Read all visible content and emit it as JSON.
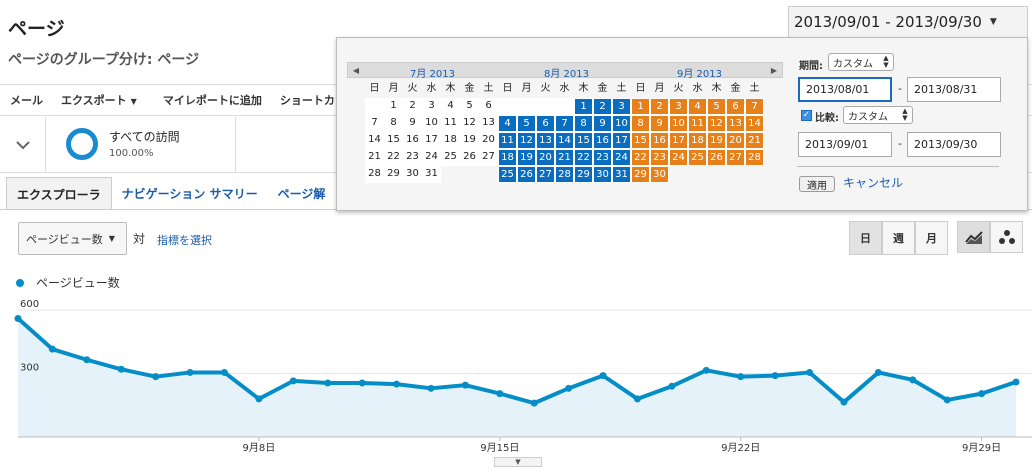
{
  "header": {
    "title": "ページ",
    "subtitle": "ページのグループ分け: ページ",
    "date_range": "2013/09/01 - 2013/09/30"
  },
  "toolbar": {
    "items": [
      "メール",
      "エクスポート",
      "マイレポートに追加",
      "ショートカ"
    ]
  },
  "segment": {
    "name": "すべての訪問",
    "percent": "100.00%"
  },
  "tabs": [
    "エクスプローラ",
    "ナビゲーション サマリー",
    "ページ解"
  ],
  "controls": {
    "metric": "ページビュー数",
    "vs": "対",
    "pick_metric": "指標を選択",
    "periods": [
      "日",
      "週",
      "月"
    ]
  },
  "legend": {
    "label": "ページビュー数",
    "color": "#058dc7"
  },
  "datepicker": {
    "months": [
      "7月 2013",
      "8月 2013",
      "9月 2013"
    ],
    "weekdays": [
      "日",
      "月",
      "火",
      "水",
      "木",
      "金",
      "土"
    ],
    "period_label": "期間:",
    "period_value": "カスタム",
    "range_start": "2013/08/01",
    "range_end": "2013/08/31",
    "compare_label": "比較:",
    "compare_value": "カスタム",
    "compare_start": "2013/09/01",
    "compare_end": "2013/09/30",
    "dash": "-",
    "apply": "適用",
    "cancel": "キャンセル",
    "colors": {
      "compare": "#0a6dbf",
      "current": "#e8801a"
    }
  },
  "chart_data": {
    "type": "area",
    "x": [
      "9/1",
      "9/2",
      "9/3",
      "9/4",
      "9/5",
      "9/6",
      "9/7",
      "9/8",
      "9/9",
      "9/10",
      "9/11",
      "9/12",
      "9/13",
      "9/14",
      "9/15",
      "9/16",
      "9/17",
      "9/18",
      "9/19",
      "9/20",
      "9/21",
      "9/22",
      "9/23",
      "9/24",
      "9/25",
      "9/26",
      "9/27",
      "9/28",
      "9/29",
      "9/30"
    ],
    "values": [
      560,
      415,
      365,
      320,
      285,
      305,
      305,
      180,
      265,
      255,
      255,
      250,
      230,
      245,
      205,
      160,
      230,
      290,
      180,
      240,
      315,
      285,
      290,
      305,
      165,
      305,
      270,
      175,
      205,
      260
    ],
    "xticks": [
      "9月8日",
      "9月15日",
      "9月22日",
      "9月29日"
    ],
    "yticks": [
      "600",
      "300"
    ],
    "ylim": [
      0,
      600
    ],
    "series_color": "#058dc7"
  }
}
